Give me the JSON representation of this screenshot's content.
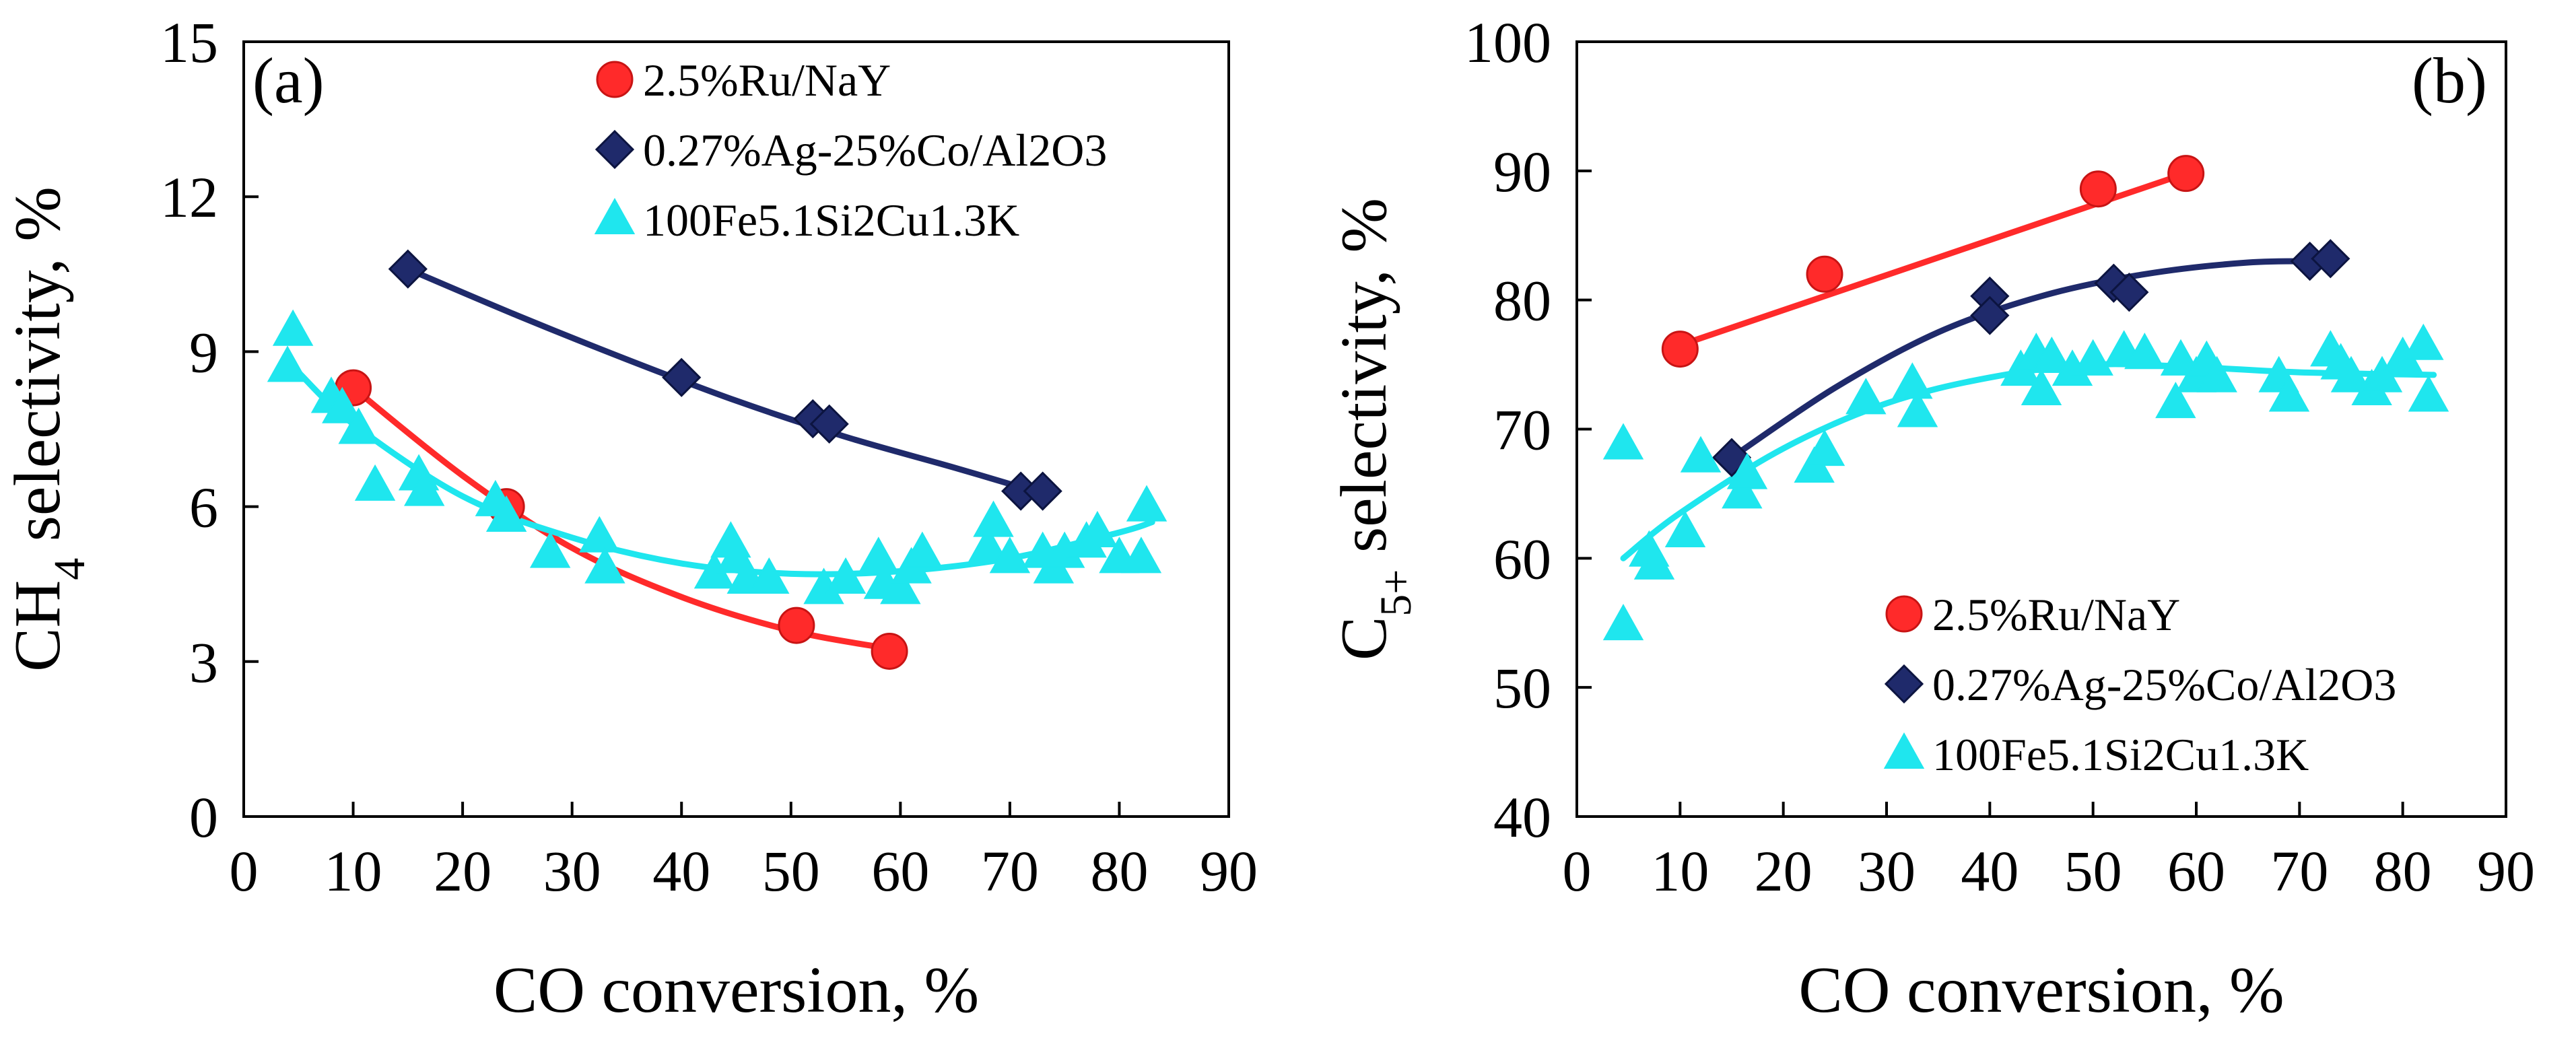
{
  "chart_data": [
    {
      "type": "scatter",
      "panel_label": "(a)",
      "xlabel": "CO conversion, %",
      "ylabel_parts": {
        "pre": "CH",
        "sub": "4",
        "post": " selectivity, %"
      },
      "xlim": [
        0,
        90
      ],
      "ylim": [
        0,
        15
      ],
      "xticks": [
        0,
        10,
        20,
        30,
        40,
        50,
        60,
        70,
        80,
        90
      ],
      "yticks": [
        0,
        3,
        6,
        9,
        12,
        15
      ],
      "grid": false,
      "legend_position": "top-center",
      "series": [
        {
          "name": "2.5%Ru/NaY",
          "marker": "circle",
          "color": "#ff2a2a",
          "points": [
            [
              10,
              8.3
            ],
            [
              24,
              6.0
            ],
            [
              50.5,
              3.7
            ],
            [
              59,
              3.2
            ]
          ],
          "fit": [
            [
              10,
              8.3
            ],
            [
              20,
              6.6
            ],
            [
              30,
              5.2
            ],
            [
              40,
              4.25
            ],
            [
              50,
              3.6
            ],
            [
              59,
              3.25
            ]
          ]
        },
        {
          "name": "0.27%Ag-25%Co/Al2O3",
          "marker": "diamond",
          "color": "#1f2a6b",
          "points": [
            [
              15,
              10.6
            ],
            [
              40,
              8.5
            ],
            [
              52,
              7.7
            ],
            [
              53.5,
              7.6
            ],
            [
              71,
              6.3
            ],
            [
              73,
              6.3
            ]
          ],
          "fit": [
            [
              15,
              10.6
            ],
            [
              25,
              9.7
            ],
            [
              35,
              8.85
            ],
            [
              45,
              8.05
            ],
            [
              55,
              7.35
            ],
            [
              65,
              6.75
            ],
            [
              73,
              6.25
            ]
          ]
        },
        {
          "name": "100Fe5.1Si2Cu1.3K",
          "marker": "triangle",
          "color": "#1fe6ee",
          "points": [
            [
              4.5,
              9.4
            ],
            [
              4,
              8.7
            ],
            [
              8,
              8.1
            ],
            [
              9,
              7.9
            ],
            [
              10.5,
              7.5
            ],
            [
              12,
              6.4
            ],
            [
              16,
              6.6
            ],
            [
              16.5,
              6.3
            ],
            [
              23,
              6.1
            ],
            [
              24,
              5.8
            ],
            [
              28,
              5.1
            ],
            [
              32.5,
              5.4
            ],
            [
              33,
              4.8
            ],
            [
              43,
              4.7
            ],
            [
              44.5,
              5.3
            ],
            [
              45,
              5.0
            ],
            [
              46,
              4.6
            ],
            [
              48,
              4.6
            ],
            [
              53,
              4.4
            ],
            [
              55,
              4.6
            ],
            [
              58,
              5.0
            ],
            [
              58.5,
              4.5
            ],
            [
              60,
              4.4
            ],
            [
              61,
              4.8
            ],
            [
              62,
              5.1
            ],
            [
              68,
              5.2
            ],
            [
              68.5,
              5.7
            ],
            [
              70,
              5.0
            ],
            [
              73,
              5.1
            ],
            [
              74,
              4.8
            ],
            [
              75,
              5.1
            ],
            [
              77,
              5.3
            ],
            [
              78,
              5.5
            ],
            [
              80,
              5.0
            ],
            [
              82,
              5.0
            ],
            [
              82.5,
              6.0
            ]
          ],
          "fit": [
            [
              5,
              8.6
            ],
            [
              10,
              7.6
            ],
            [
              20,
              6.2
            ],
            [
              30,
              5.4
            ],
            [
              40,
              4.9
            ],
            [
              50,
              4.7
            ],
            [
              60,
              4.75
            ],
            [
              70,
              5.0
            ],
            [
              80,
              5.5
            ],
            [
              83,
              5.7
            ]
          ]
        }
      ]
    },
    {
      "type": "scatter",
      "panel_label": "(b)",
      "xlabel": "CO conversion, %",
      "ylabel_parts": {
        "pre": "C",
        "sub": "5+",
        "post": " selectivity, %"
      },
      "xlim": [
        0,
        90
      ],
      "ylim": [
        40,
        100
      ],
      "xticks": [
        0,
        10,
        20,
        30,
        40,
        50,
        60,
        70,
        80,
        90
      ],
      "yticks": [
        40,
        50,
        60,
        70,
        80,
        90,
        100
      ],
      "grid": false,
      "legend_position": "bottom-center",
      "series": [
        {
          "name": "2.5%Ru/NaY",
          "marker": "circle",
          "color": "#ff2a2a",
          "points": [
            [
              10,
              76.2
            ],
            [
              24,
              82.0
            ],
            [
              50.5,
              88.6
            ],
            [
              59,
              89.8
            ]
          ],
          "fit": [
            [
              10,
              76.5
            ],
            [
              59,
              89.8
            ]
          ]
        },
        {
          "name": "0.27%Ag-25%Co/Al2O3",
          "marker": "diamond",
          "color": "#1f2a6b",
          "points": [
            [
              15,
              67.8
            ],
            [
              40,
              80.3
            ],
            [
              40,
              78.8
            ],
            [
              52,
              81.3
            ],
            [
              53.5,
              80.6
            ],
            [
              71,
              83.0
            ],
            [
              73,
              83.2
            ]
          ],
          "fit": [
            [
              15,
              67.8
            ],
            [
              25,
              73.2
            ],
            [
              35,
              77.5
            ],
            [
              45,
              80.3
            ],
            [
              55,
              82.0
            ],
            [
              65,
              82.9
            ],
            [
              73,
              83.0
            ]
          ]
        },
        {
          "name": "100Fe5.1Si2Cu1.3K",
          "marker": "triangle",
          "color": "#1fe6ee",
          "points": [
            [
              4.5,
              68.8
            ],
            [
              4.5,
              54.8
            ],
            [
              7,
              60.5
            ],
            [
              7.5,
              59.5
            ],
            [
              10.5,
              62.0
            ],
            [
              12,
              67.8
            ],
            [
              16,
              65.0
            ],
            [
              16.5,
              66.5
            ],
            [
              23,
              67.0
            ],
            [
              24,
              68.3
            ],
            [
              28,
              72.3
            ],
            [
              32.5,
              73.5
            ],
            [
              33,
              71.3
            ],
            [
              43,
              74.5
            ],
            [
              44.5,
              75.8
            ],
            [
              45,
              73.0
            ],
            [
              46,
              75.5
            ],
            [
              48,
              74.5
            ],
            [
              50,
              75.3
            ],
            [
              53,
              76.0
            ],
            [
              55,
              75.8
            ],
            [
              58,
              72.0
            ],
            [
              58.5,
              75.3
            ],
            [
              60,
              74.0
            ],
            [
              61,
              75.2
            ],
            [
              62,
              74.0
            ],
            [
              68,
              74.0
            ],
            [
              69,
              72.5
            ],
            [
              73,
              76.0
            ],
            [
              74,
              75.0
            ],
            [
              75,
              74.0
            ],
            [
              77,
              73.0
            ],
            [
              78,
              74.0
            ],
            [
              80,
              75.5
            ],
            [
              82,
              76.5
            ],
            [
              82.5,
              72.5
            ]
          ],
          "fit": [
            [
              4.5,
              60.0
            ],
            [
              10,
              63.5
            ],
            [
              20,
              68.5
            ],
            [
              30,
              72.0
            ],
            [
              40,
              74.0
            ],
            [
              50,
              75.0
            ],
            [
              60,
              74.8
            ],
            [
              70,
              74.4
            ],
            [
              83,
              74.2
            ]
          ]
        }
      ]
    }
  ]
}
